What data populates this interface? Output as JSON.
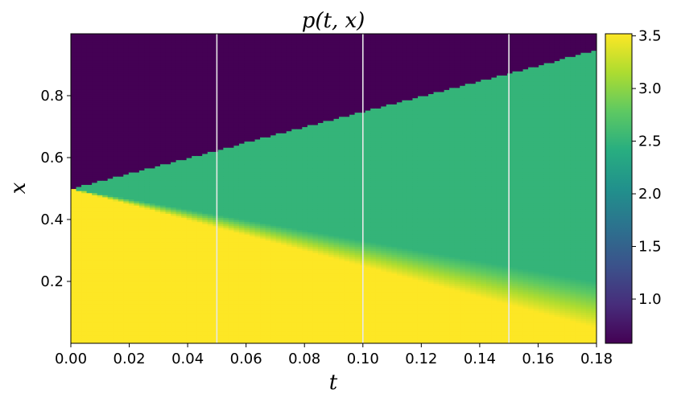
{
  "chart_data": {
    "type": "heatmap",
    "title": "p(t, x)",
    "xlabel": "t",
    "ylabel": "x",
    "xlim": [
      0.0,
      0.18
    ],
    "ylim": [
      0.0,
      1.0
    ],
    "x_ticks": [
      "0.00",
      "0.02",
      "0.04",
      "0.06",
      "0.08",
      "0.10",
      "0.12",
      "0.14",
      "0.16",
      "0.18"
    ],
    "x_tick_values": [
      0.0,
      0.02,
      0.04,
      0.06,
      0.08,
      0.1,
      0.12,
      0.14,
      0.16,
      0.18
    ],
    "y_ticks": [
      "0.2",
      "0.4",
      "0.6",
      "0.8"
    ],
    "y_tick_values": [
      0.2,
      0.4,
      0.6,
      0.8
    ],
    "colorbar": {
      "colormap": "viridis",
      "range": [
        0.58,
        3.52
      ],
      "ticks": [
        "1.0",
        "1.5",
        "2.0",
        "2.5",
        "3.0",
        "3.5"
      ],
      "tick_values": [
        1.0,
        1.5,
        2.0,
        2.5,
        3.0,
        3.5
      ]
    },
    "field": {
      "background_value": 0.58,
      "shock_x_at_t0": 0.5,
      "shock_x_at_tmax": 0.948,
      "middle_value": 2.5,
      "bottom_value": 3.52,
      "rarefaction_tail_x_at_tmax": 0.05,
      "rarefaction_head_x_at_tmax": 0.2,
      "head_x_at_t0": 0.5
    },
    "vertical_lines": [
      0.05,
      0.1,
      0.15
    ],
    "vertical_line_color": "#e8e8e8",
    "grid": false
  }
}
